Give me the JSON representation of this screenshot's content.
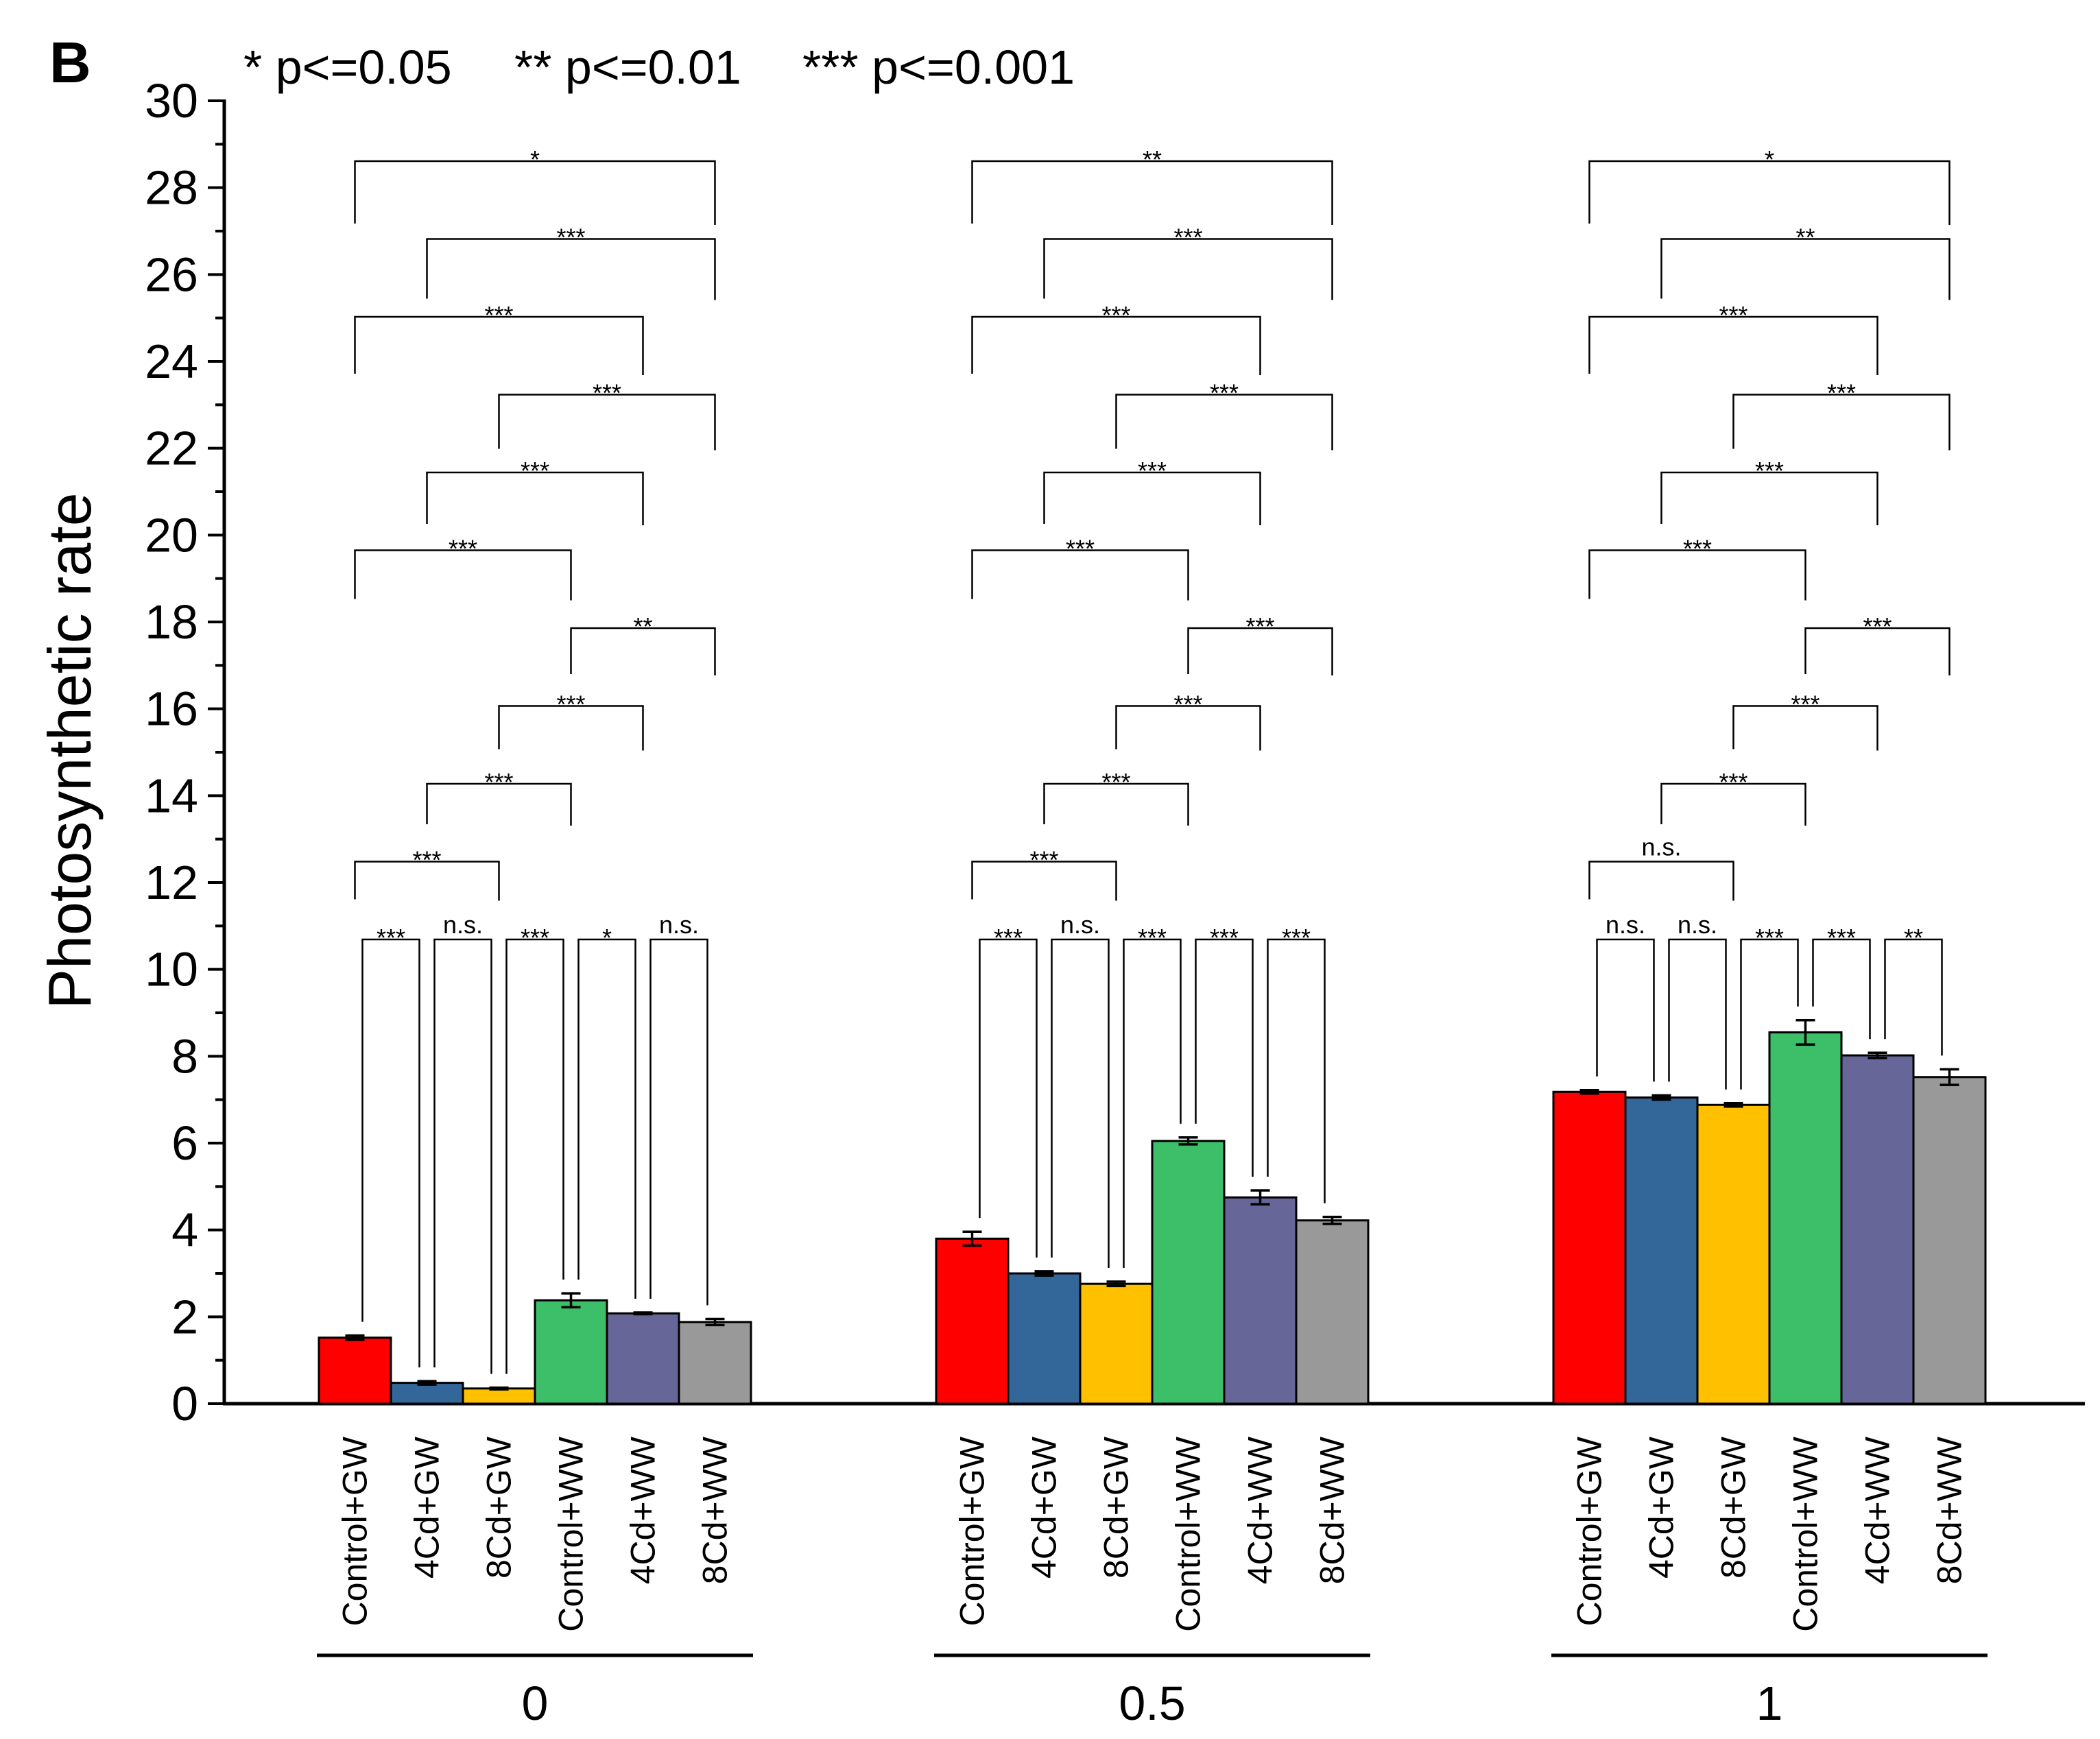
{
  "chart_data": {
    "type": "bar",
    "panel_label": "B",
    "significance_legend": [
      "* p<=0.05",
      "** p<=0.01",
      "*** p<=0.001"
    ],
    "ylabel": "Photosynthetic rate",
    "ylim": [
      0,
      30
    ],
    "yticks": [
      0,
      2,
      4,
      6,
      8,
      10,
      12,
      14,
      16,
      18,
      20,
      22,
      24,
      26,
      28,
      30
    ],
    "treatments": [
      "Control+GW",
      "4Cd+GW",
      "8Cd+GW",
      "Control+WW",
      "4Cd+WW",
      "8Cd+WW"
    ],
    "colors": [
      "#ff0000",
      "#336699",
      "#ffc000",
      "#3dbf6a",
      "#666699",
      "#999999"
    ],
    "groups": [
      {
        "label": "0",
        "values": [
          1.52,
          0.48,
          0.35,
          2.38,
          2.08,
          1.88
        ],
        "errors": [
          0.05,
          0.04,
          0.02,
          0.16,
          0.02,
          0.07
        ],
        "comparisons": [
          {
            "a": 0,
            "b": 1,
            "level": 1,
            "label": "***"
          },
          {
            "a": 1,
            "b": 2,
            "level": 1,
            "label": "n.s."
          },
          {
            "a": 2,
            "b": 3,
            "level": 1,
            "label": "***"
          },
          {
            "a": 3,
            "b": 4,
            "level": 1,
            "label": "*"
          },
          {
            "a": 4,
            "b": 5,
            "level": 1,
            "label": "n.s."
          },
          {
            "a": 0,
            "b": 2,
            "level": 2,
            "label": "***"
          },
          {
            "a": 1,
            "b": 3,
            "level": 3,
            "label": "***"
          },
          {
            "a": 2,
            "b": 4,
            "level": 4,
            "label": "***"
          },
          {
            "a": 3,
            "b": 5,
            "level": 5,
            "label": "**"
          },
          {
            "a": 0,
            "b": 3,
            "level": 6,
            "label": "***"
          },
          {
            "a": 1,
            "b": 4,
            "level": 7,
            "label": "***"
          },
          {
            "a": 2,
            "b": 5,
            "level": 8,
            "label": "***"
          },
          {
            "a": 0,
            "b": 4,
            "level": 9,
            "label": "***"
          },
          {
            "a": 1,
            "b": 5,
            "level": 10,
            "label": "***"
          },
          {
            "a": 0,
            "b": 5,
            "level": 11,
            "label": "*"
          }
        ]
      },
      {
        "label": "0.5",
        "values": [
          3.8,
          3.0,
          2.76,
          6.05,
          4.75,
          4.22
        ],
        "errors": [
          0.16,
          0.05,
          0.05,
          0.08,
          0.16,
          0.08
        ],
        "comparisons": [
          {
            "a": 0,
            "b": 1,
            "level": 1,
            "label": "***"
          },
          {
            "a": 1,
            "b": 2,
            "level": 1,
            "label": "n.s."
          },
          {
            "a": 2,
            "b": 3,
            "level": 1,
            "label": "***"
          },
          {
            "a": 3,
            "b": 4,
            "level": 1,
            "label": "***"
          },
          {
            "a": 4,
            "b": 5,
            "level": 1,
            "label": "***"
          },
          {
            "a": 0,
            "b": 2,
            "level": 2,
            "label": "***"
          },
          {
            "a": 1,
            "b": 3,
            "level": 3,
            "label": "***"
          },
          {
            "a": 2,
            "b": 4,
            "level": 4,
            "label": "***"
          },
          {
            "a": 3,
            "b": 5,
            "level": 5,
            "label": "***"
          },
          {
            "a": 0,
            "b": 3,
            "level": 6,
            "label": "***"
          },
          {
            "a": 1,
            "b": 4,
            "level": 7,
            "label": "***"
          },
          {
            "a": 2,
            "b": 5,
            "level": 8,
            "label": "***"
          },
          {
            "a": 0,
            "b": 4,
            "level": 9,
            "label": "***"
          },
          {
            "a": 1,
            "b": 5,
            "level": 10,
            "label": "***"
          },
          {
            "a": 0,
            "b": 5,
            "level": 11,
            "label": "**"
          }
        ]
      },
      {
        "label": "1",
        "values": [
          7.18,
          7.05,
          6.88,
          8.55,
          8.02,
          7.52
        ],
        "errors": [
          0.04,
          0.05,
          0.04,
          0.28,
          0.06,
          0.18
        ],
        "comparisons": [
          {
            "a": 0,
            "b": 1,
            "level": 1,
            "label": "n.s."
          },
          {
            "a": 1,
            "b": 2,
            "level": 1,
            "label": "n.s."
          },
          {
            "a": 2,
            "b": 3,
            "level": 1,
            "label": "***"
          },
          {
            "a": 3,
            "b": 4,
            "level": 1,
            "label": "***"
          },
          {
            "a": 4,
            "b": 5,
            "level": 1,
            "label": "**"
          },
          {
            "a": 0,
            "b": 2,
            "level": 2,
            "label": "n.s."
          },
          {
            "a": 1,
            "b": 3,
            "level": 3,
            "label": "***"
          },
          {
            "a": 2,
            "b": 4,
            "level": 4,
            "label": "***"
          },
          {
            "a": 3,
            "b": 5,
            "level": 5,
            "label": "***"
          },
          {
            "a": 0,
            "b": 3,
            "level": 6,
            "label": "***"
          },
          {
            "a": 1,
            "b": 4,
            "level": 7,
            "label": "***"
          },
          {
            "a": 2,
            "b": 5,
            "level": 8,
            "label": "***"
          },
          {
            "a": 0,
            "b": 4,
            "level": 9,
            "label": "***"
          },
          {
            "a": 1,
            "b": 5,
            "level": 10,
            "label": "**"
          },
          {
            "a": 0,
            "b": 5,
            "level": 11,
            "label": "*"
          }
        ]
      }
    ]
  }
}
